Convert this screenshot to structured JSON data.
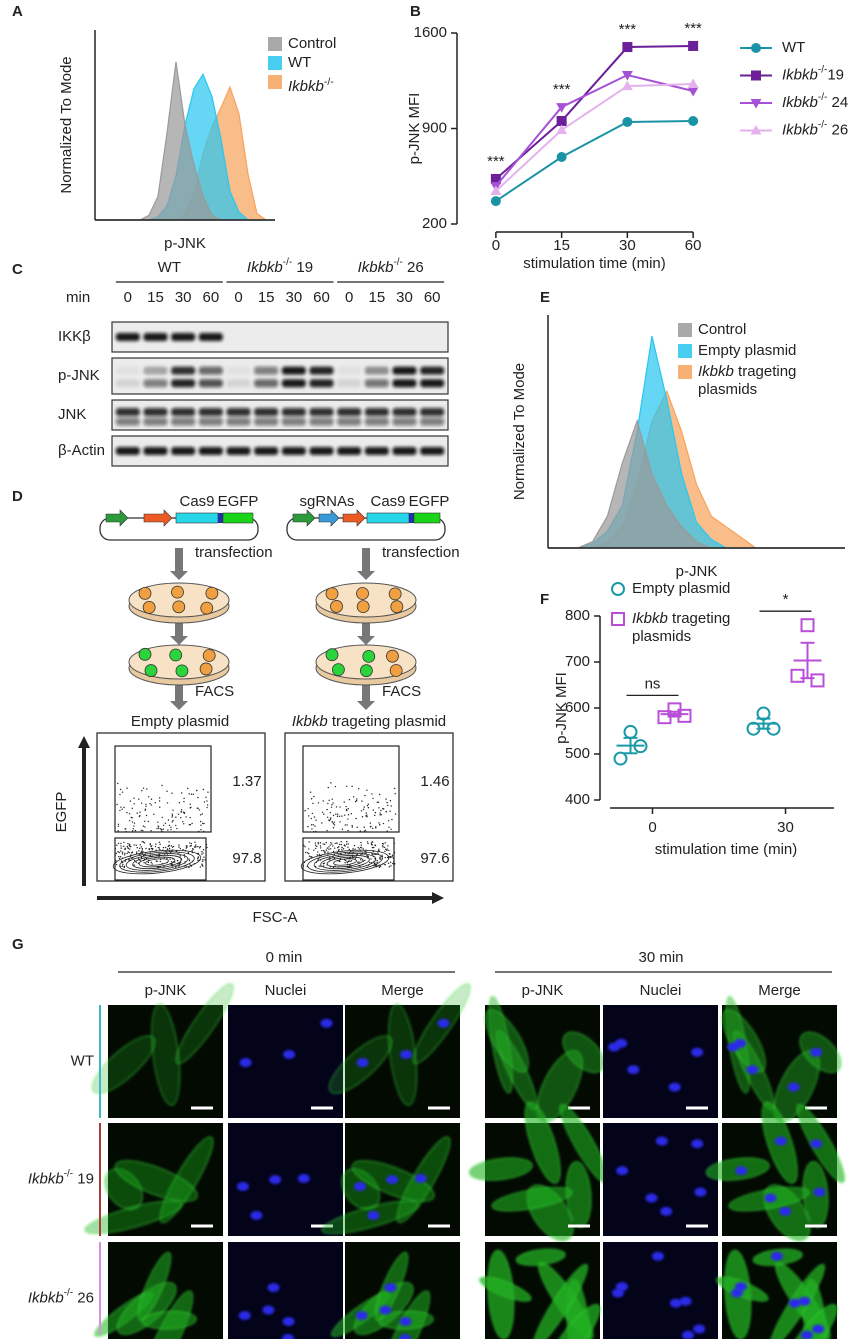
{
  "panel_labels": [
    "A",
    "B",
    "C",
    "D",
    "E",
    "F",
    "G"
  ],
  "chart_data": [
    {
      "type": "area",
      "y_label": "Normalized To Mode",
      "x_label": "p-JNK",
      "legend": "upper right",
      "x": [
        0,
        0.25,
        0.5,
        0.75,
        1,
        1.25,
        1.5,
        1.75,
        2,
        2.25,
        2.5,
        2.75,
        3,
        3.25,
        3.5,
        3.75,
        4,
        4.25,
        4.5,
        4.75,
        5
      ],
      "xlim": [
        0,
        5
      ],
      "ylim": [
        0,
        120
      ],
      "series": [
        {
          "name": "Control",
          "color": "#9a9a9a",
          "values": [
            0,
            0,
            0,
            0,
            0,
            0,
            3,
            15,
            55,
            100,
            60,
            35,
            15,
            3,
            0,
            0,
            0,
            0,
            0,
            0,
            0
          ]
        },
        {
          "name": "WT",
          "color": "#29c6f0",
          "values": [
            0,
            0,
            0,
            0,
            0,
            0,
            0,
            2,
            9,
            28,
            60,
            83,
            92,
            78,
            51,
            18,
            5,
            0,
            0,
            0,
            0
          ]
        },
        {
          "name": "Ikbkb-/-",
          "color": "#f7a35c",
          "values": [
            0,
            0,
            0,
            0,
            0,
            0,
            0,
            0,
            0,
            0,
            4,
            17,
            42,
            59,
            71,
            84,
            67,
            29,
            4,
            0,
            0
          ]
        }
      ]
    },
    {
      "type": "line",
      "y_label": "p-JNK MFI",
      "x_label": "stimulation time (min)",
      "categories": [
        0,
        15,
        30,
        60
      ],
      "ylim": [
        200,
        1600
      ],
      "yticks": [
        200,
        900,
        1600
      ],
      "annotations": [
        "***",
        "***",
        "***",
        "***"
      ],
      "legend": "right",
      "series": [
        {
          "name": "WT",
          "color": "#1a94a4",
          "marker": "circle",
          "values": [
            368,
            691,
            948,
            955
          ]
        },
        {
          "name": "Ikbkb-/-19",
          "color": "#6b1f99",
          "marker": "square",
          "values": [
            530,
            955,
            1497,
            1505
          ]
        },
        {
          "name": "Ikbkb-/- 24",
          "color": "#a650d8",
          "marker": "triangle-down",
          "values": [
            478,
            1057,
            1292,
            1175
          ]
        },
        {
          "name": "Ikbkb-/- 26",
          "color": "#e3b2ec",
          "marker": "triangle-up",
          "values": [
            442,
            889,
            1211,
            1226
          ]
        }
      ]
    },
    {
      "type": "area",
      "y_label": "Normalized To Mode",
      "x_label": "p-JNK",
      "legend": "upper right",
      "x": [
        0,
        0.25,
        0.5,
        0.75,
        1,
        1.25,
        1.5,
        1.75,
        2,
        2.25,
        2.5,
        2.75,
        3,
        3.25,
        3.5,
        3.75,
        4,
        4.25,
        4.5,
        4.75,
        5
      ],
      "xlim": [
        0,
        5
      ],
      "ylim": [
        0,
        110
      ],
      "series": [
        {
          "name": "Control",
          "color": "#9a9a9a",
          "values": [
            0,
            0,
            0,
            3,
            15,
            40,
            60,
            35,
            20,
            10,
            3,
            0,
            0,
            0,
            0,
            0,
            0,
            0,
            0,
            0,
            0
          ]
        },
        {
          "name": "Empty plasmid",
          "color": "#29c6f0",
          "values": [
            0,
            0,
            0,
            2,
            8,
            20,
            55,
            100,
            70,
            35,
            12,
            4,
            0,
            0,
            0,
            0,
            0,
            0,
            0,
            0,
            0
          ]
        },
        {
          "name": "Ikbkb trageting plasmids",
          "color": "#f7a35c",
          "values": [
            0,
            0,
            0,
            0,
            3,
            10,
            30,
            60,
            74,
            55,
            30,
            15,
            10,
            5,
            0,
            0,
            0,
            0,
            0,
            0,
            0
          ]
        }
      ]
    },
    {
      "type": "dot",
      "y_label": "p-JNK MFI",
      "x_label": "stimulation time (min)",
      "categories": [
        0,
        30
      ],
      "ylim": [
        400,
        800
      ],
      "yticks": [
        400,
        500,
        600,
        700,
        800
      ],
      "annotations": [
        "ns",
        "*"
      ],
      "legend": "upper left",
      "series": [
        {
          "name": "Empty plasmid",
          "color": "#1a9aa8",
          "marker": "circle",
          "values": [
            [
              548,
              490,
              517
            ],
            [
              588,
              555,
              555
            ]
          ]
        },
        {
          "name": "Ikbkb trageting plasmids",
          "color": "#b94fd8",
          "marker": "square",
          "values": [
            [
              597,
              580,
              583
            ],
            [
              780,
              670,
              660
            ]
          ]
        }
      ]
    }
  ],
  "western_blot": {
    "time_label": "min",
    "groups": [
      {
        "label": "WT",
        "times": [
          0,
          15,
          30,
          60
        ]
      },
      {
        "label": "Ikbkb-/- 19",
        "times": [
          0,
          15,
          30,
          60
        ]
      },
      {
        "label": "Ikbkb-/- 26",
        "times": [
          0,
          15,
          30,
          60
        ]
      }
    ],
    "rows": [
      "IKKβ",
      "p-JNK",
      "JNK",
      "β-Actin"
    ]
  },
  "crispr": {
    "columns": [
      {
        "construct": [
          "Cas9",
          "EGFP"
        ],
        "steps": [
          "transfection",
          "FACS"
        ],
        "title": "Empty plasmid",
        "gates": [
          1.37,
          97.8
        ]
      },
      {
        "construct": [
          "sgRNAs",
          "Cas9",
          "EGFP"
        ],
        "steps": [
          "transfection",
          "FACS"
        ],
        "title": "Ikbkb trageting plasmid",
        "gates": [
          1.46,
          97.6
        ]
      }
    ],
    "y_label": "EGFP",
    "x_label": "FSC-A"
  },
  "microscopy": {
    "timepoints": [
      {
        "label": "0 min",
        "channels": [
          "p-JNK",
          "Nuclei",
          "Merge"
        ]
      },
      {
        "label": "30 min",
        "channels": [
          "p-JNK",
          "Nuclei",
          "Merge"
        ]
      }
    ],
    "rows": [
      "WT",
      "Ikbkb-/- 19",
      "Ikbkb-/- 26"
    ]
  }
}
